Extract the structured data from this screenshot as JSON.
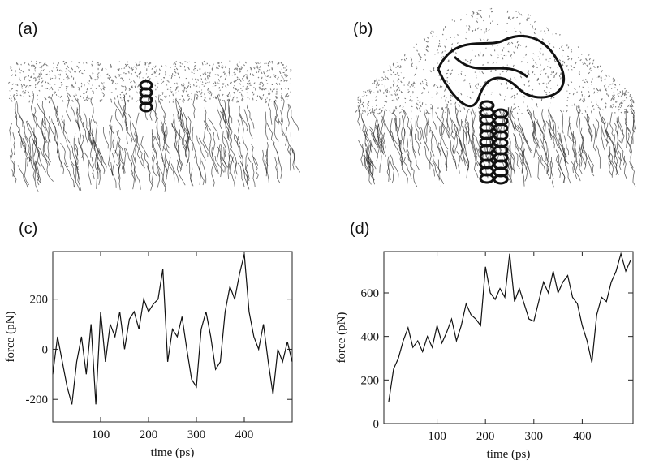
{
  "panels": [
    {
      "label": "(a)"
    },
    {
      "label": "(b)"
    }
  ],
  "chart_data": [
    {
      "type": "line",
      "title": "(c)",
      "x_label": "time (ps)",
      "y_label": "force (pN)",
      "x": [
        0,
        10,
        20,
        30,
        40,
        50,
        60,
        70,
        80,
        90,
        100,
        110,
        120,
        130,
        140,
        150,
        160,
        170,
        180,
        190,
        200,
        210,
        220,
        230,
        240,
        250,
        260,
        270,
        280,
        290,
        300,
        310,
        320,
        330,
        340,
        350,
        360,
        370,
        380,
        390,
        400,
        410,
        420,
        430,
        440,
        450,
        460,
        470,
        480,
        490,
        500
      ],
      "series": [
        {
          "color": "#111111",
          "values": [
            -100,
            50,
            -50,
            -150,
            -220,
            -50,
            50,
            -100,
            100,
            -220,
            150,
            -50,
            100,
            50,
            150,
            0,
            120,
            150,
            80,
            200,
            150,
            180,
            200,
            320,
            -50,
            80,
            50,
            130,
            0,
            -120,
            -150,
            80,
            150,
            50,
            -80,
            -50,
            150,
            250,
            200,
            300,
            380,
            150,
            50,
            0,
            100,
            -50,
            -180,
            0,
            -50,
            30,
            -50
          ]
        }
      ],
      "xlim": [
        0,
        500
      ],
      "xticks": [
        100,
        200,
        300,
        400
      ],
      "ylim": [
        -290,
        390
      ],
      "yticks": [
        -200,
        0,
        200
      ]
    },
    {
      "type": "line",
      "title": "(d)",
      "x_label": "time (ps)",
      "y_label": "force (pN)",
      "x": [
        0,
        10,
        20,
        30,
        40,
        50,
        60,
        70,
        80,
        90,
        100,
        110,
        120,
        130,
        140,
        150,
        160,
        170,
        180,
        190,
        200,
        210,
        220,
        230,
        240,
        250,
        260,
        270,
        280,
        290,
        300,
        310,
        320,
        330,
        340,
        350,
        360,
        370,
        380,
        390,
        400,
        410,
        420,
        430,
        440,
        450,
        460,
        470,
        480,
        490,
        500
      ],
      "series": [
        {
          "color": "#111111",
          "values": [
            100,
            250,
            300,
            380,
            440,
            350,
            380,
            330,
            400,
            350,
            450,
            370,
            420,
            480,
            380,
            450,
            550,
            500,
            480,
            450,
            720,
            600,
            570,
            620,
            580,
            780,
            560,
            620,
            550,
            480,
            470,
            560,
            650,
            600,
            700,
            600,
            650,
            680,
            580,
            550,
            450,
            380,
            280,
            500,
            580,
            560,
            650,
            700,
            780,
            700,
            750
          ]
        }
      ],
      "xlim": [
        -10,
        505
      ],
      "xticks": [
        100,
        200,
        300,
        400
      ],
      "ylim": [
        0,
        790
      ],
      "yticks": [
        0,
        200,
        400,
        600
      ]
    }
  ]
}
